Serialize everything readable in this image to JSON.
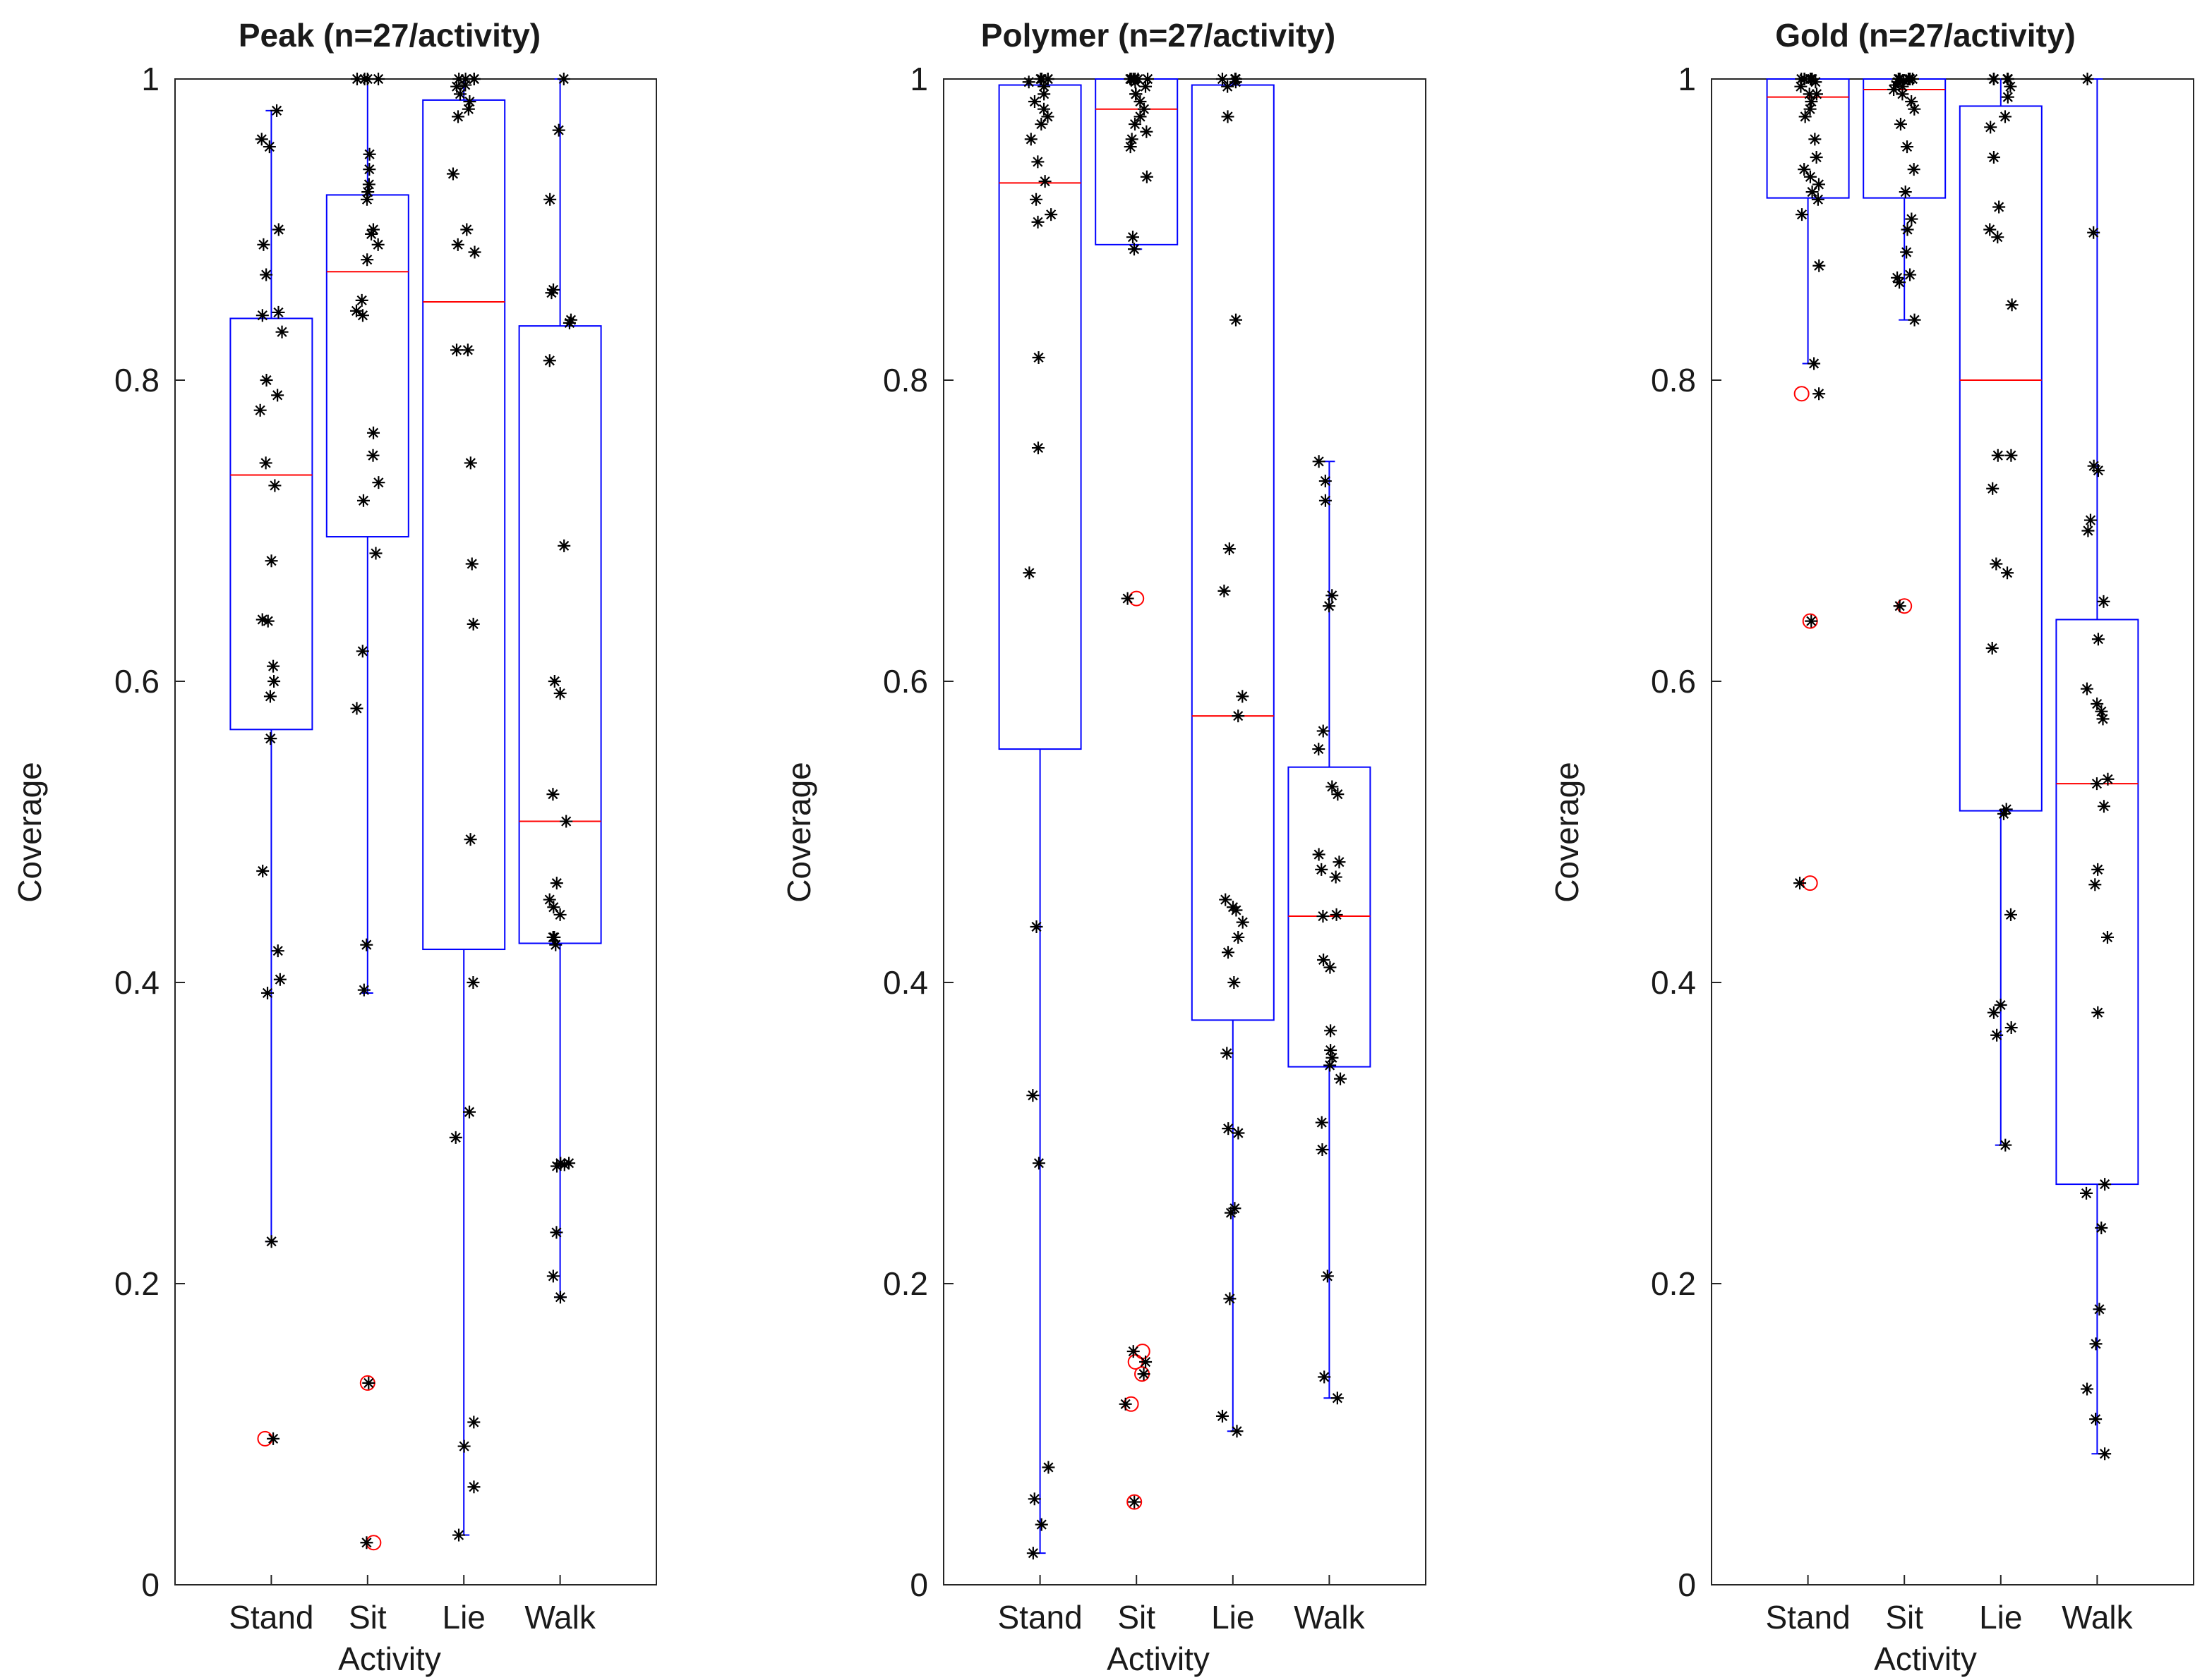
{
  "figure": {
    "background": "#ffffff"
  },
  "colors": {
    "box": "#0000ff",
    "median": "#ff0000",
    "points": "#000000",
    "outlier": "#ff0000",
    "axis": "#262626"
  },
  "chart_data": [
    {
      "type": "box",
      "title": "Peak (n=27/activity)",
      "xlabel": "Activity",
      "ylabel": "Coverage",
      "ylim": [
        0,
        1
      ],
      "yticks": [
        "0",
        "0.2",
        "0.4",
        "0.6",
        "0.8",
        "1"
      ],
      "categories": [
        "Stand",
        "Sit",
        "Lie",
        "Walk"
      ],
      "boxes": [
        {
          "q1": 0.568,
          "median": 0.737,
          "q3": 0.841,
          "whisker_low": 0.228,
          "whisker_high": 0.979,
          "outliers": [
            0.097
          ]
        },
        {
          "q1": 0.696,
          "median": 0.872,
          "q3": 0.923,
          "whisker_low": 0.393,
          "whisker_high": 1.0,
          "outliers": [
            0.134,
            0.028
          ]
        },
        {
          "q1": 0.422,
          "median": 0.852,
          "q3": 0.986,
          "whisker_low": 0.033,
          "whisker_high": 1.0,
          "outliers": []
        },
        {
          "q1": 0.426,
          "median": 0.507,
          "q3": 0.836,
          "whisker_low": 0.191,
          "whisker_high": 1.0,
          "outliers": []
        }
      ],
      "points": [
        [
          0.979,
          0.96,
          0.955,
          0.9,
          0.89,
          0.845,
          0.843,
          0.832,
          0.8,
          0.79,
          0.78,
          0.745,
          0.73,
          0.68,
          0.641,
          0.64,
          0.6,
          0.59,
          0.562,
          0.474,
          0.421,
          0.402,
          0.393,
          0.228,
          0.097,
          0.87,
          0.61
        ],
        [
          1.0,
          1.0,
          1.0,
          1.0,
          0.95,
          0.94,
          0.925,
          0.92,
          0.9,
          0.897,
          0.89,
          0.853,
          0.846,
          0.843,
          0.765,
          0.75,
          0.732,
          0.685,
          0.62,
          0.582,
          0.425,
          0.395,
          0.134,
          0.028,
          0.93,
          0.88,
          0.72
        ],
        [
          1.0,
          1.0,
          1.0,
          1.0,
          0.995,
          0.99,
          0.985,
          0.98,
          0.937,
          0.9,
          0.885,
          0.82,
          0.82,
          0.745,
          0.678,
          0.638,
          0.495,
          0.4,
          0.314,
          0.297,
          0.108,
          0.092,
          0.065,
          0.033,
          0.996,
          0.975,
          0.89
        ],
        [
          1.0,
          0.966,
          0.92,
          0.86,
          0.858,
          0.838,
          0.813,
          0.69,
          0.6,
          0.592,
          0.525,
          0.507,
          0.466,
          0.455,
          0.445,
          0.43,
          0.425,
          0.28,
          0.279,
          0.278,
          0.234,
          0.205,
          0.191,
          0.84,
          0.45,
          0.28,
          0.43
        ]
      ]
    },
    {
      "type": "box",
      "title": "Polymer (n=27/activity)",
      "xlabel": "Activity",
      "ylabel": "Coverage",
      "ylim": [
        0,
        1
      ],
      "yticks": [
        "0",
        "0.2",
        "0.4",
        "0.6",
        "0.8",
        "1"
      ],
      "categories": [
        "Stand",
        "Sit",
        "Lie",
        "Walk"
      ],
      "boxes": [
        {
          "q1": 0.555,
          "median": 0.931,
          "q3": 0.996,
          "whisker_low": 0.021,
          "whisker_high": 1.0,
          "outliers": []
        },
        {
          "q1": 0.89,
          "median": 0.98,
          "q3": 1.0,
          "whisker_low": 0.887,
          "whisker_high": 1.0,
          "outliers": [
            0.655,
            0.155,
            0.148,
            0.14,
            0.12,
            0.055
          ]
        },
        {
          "q1": 0.375,
          "median": 0.577,
          "q3": 0.996,
          "whisker_low": 0.102,
          "whisker_high": 1.0,
          "outliers": []
        },
        {
          "q1": 0.344,
          "median": 0.444,
          "q3": 0.543,
          "whisker_low": 0.124,
          "whisker_high": 0.746,
          "outliers": []
        }
      ],
      "points": [
        [
          1.0,
          1.0,
          1.0,
          0.998,
          0.995,
          0.98,
          0.975,
          0.97,
          0.945,
          0.932,
          0.91,
          0.905,
          0.815,
          0.755,
          0.672,
          0.437,
          0.325,
          0.28,
          0.078,
          0.057,
          0.04,
          0.021,
          0.99,
          0.985,
          0.92,
          0.96,
          1.0
        ],
        [
          1.0,
          1.0,
          1.0,
          1.0,
          1.0,
          0.995,
          0.99,
          0.985,
          0.98,
          0.97,
          0.96,
          0.955,
          0.935,
          0.895,
          0.887,
          0.655,
          0.155,
          0.148,
          0.14,
          0.12,
          0.055,
          1.0,
          0.998,
          0.975,
          1.0,
          0.99,
          0.965
        ],
        [
          1.0,
          1.0,
          1.0,
          1.0,
          0.998,
          0.975,
          0.84,
          0.688,
          0.66,
          0.59,
          0.577,
          0.455,
          0.45,
          0.448,
          0.43,
          0.42,
          0.4,
          0.353,
          0.303,
          0.25,
          0.247,
          0.19,
          0.112,
          0.102,
          0.995,
          0.44,
          0.3
        ],
        [
          0.746,
          0.733,
          0.72,
          0.657,
          0.65,
          0.567,
          0.555,
          0.53,
          0.525,
          0.485,
          0.48,
          0.475,
          0.445,
          0.444,
          0.415,
          0.41,
          0.368,
          0.355,
          0.35,
          0.345,
          0.336,
          0.307,
          0.289,
          0.205,
          0.138,
          0.124,
          0.47
        ]
      ]
    },
    {
      "type": "box",
      "title": "Gold (n=27/activity)",
      "xlabel": "Activity",
      "ylabel": "Coverage",
      "ylim": [
        0,
        1
      ],
      "yticks": [
        "0",
        "0.2",
        "0.4",
        "0.6",
        "0.8",
        "1"
      ],
      "categories": [
        "Stand",
        "Sit",
        "Lie",
        "Walk"
      ],
      "boxes": [
        {
          "q1": 0.921,
          "median": 0.988,
          "q3": 1.0,
          "whisker_low": 0.811,
          "whisker_high": 1.0,
          "outliers": [
            0.791,
            0.64,
            0.466
          ]
        },
        {
          "q1": 0.921,
          "median": 0.993,
          "q3": 1.0,
          "whisker_low": 0.84,
          "whisker_high": 1.0,
          "outliers": [
            0.65
          ]
        },
        {
          "q1": 0.514,
          "median": 0.8,
          "q3": 0.982,
          "whisker_low": 0.292,
          "whisker_high": 1.0,
          "outliers": []
        },
        {
          "q1": 0.266,
          "median": 0.532,
          "q3": 0.641,
          "whisker_low": 0.087,
          "whisker_high": 1.0,
          "outliers": []
        }
      ],
      "points": [
        [
          1.0,
          1.0,
          1.0,
          1.0,
          1.0,
          0.998,
          0.99,
          0.985,
          0.975,
          0.96,
          0.948,
          0.935,
          0.93,
          0.925,
          0.92,
          0.91,
          0.876,
          0.811,
          0.791,
          0.64,
          0.466,
          1.0,
          0.995,
          0.99,
          0.94,
          0.98,
          1.0
        ],
        [
          1.0,
          1.0,
          1.0,
          1.0,
          1.0,
          0.998,
          0.993,
          0.99,
          0.985,
          0.955,
          0.94,
          0.925,
          0.907,
          0.885,
          0.87,
          0.868,
          0.865,
          0.84,
          0.65,
          1.0,
          0.996,
          0.98,
          1.0,
          0.999,
          0.97,
          0.9,
          0.995
        ],
        [
          1.0,
          1.0,
          1.0,
          1.0,
          0.995,
          0.988,
          0.968,
          0.948,
          0.915,
          0.9,
          0.895,
          0.85,
          0.75,
          0.75,
          0.728,
          0.678,
          0.672,
          0.622,
          0.515,
          0.512,
          0.445,
          0.385,
          0.38,
          0.37,
          0.365,
          0.292,
          0.975
        ],
        [
          1.0,
          0.898,
          0.743,
          0.74,
          0.707,
          0.7,
          0.653,
          0.628,
          0.595,
          0.585,
          0.58,
          0.575,
          0.535,
          0.532,
          0.517,
          0.475,
          0.465,
          0.43,
          0.38,
          0.266,
          0.26,
          0.237,
          0.183,
          0.16,
          0.13,
          0.11,
          0.087
        ]
      ]
    }
  ]
}
